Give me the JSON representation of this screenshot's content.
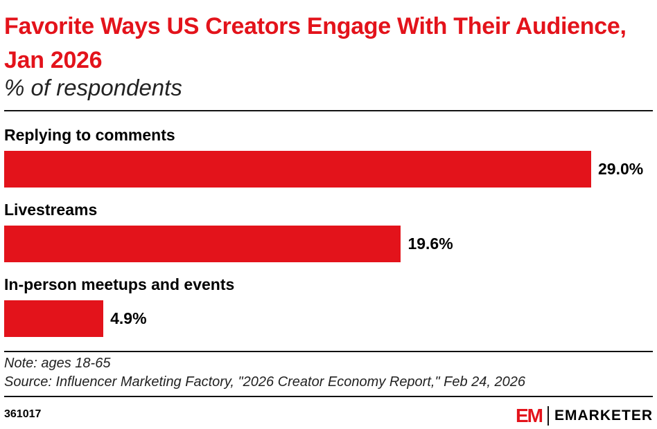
{
  "chart_data": {
    "type": "bar",
    "orientation": "horizontal",
    "title": "Favorite Ways US Creators Engage With Their Audience, Jan 2026",
    "subtitle": "% of respondents",
    "categories": [
      "Replying to comments",
      "Livestreams",
      "In-person meetups and events"
    ],
    "values": [
      29.0,
      19.6,
      4.9
    ],
    "data_labels": [
      "29.0%",
      "19.6%",
      "4.9%"
    ],
    "xlim": [
      0,
      29.0
    ],
    "grid": false,
    "bar_color": "#e3131b"
  },
  "footer": {
    "note": "Note: ages 18-65",
    "source": "Source: Influencer Marketing Factory, \"2026 Creator Economy Report,\" Feb 24, 2026",
    "id": "361017",
    "logo_mark": "EM",
    "logo_text": "EMARKETER"
  }
}
